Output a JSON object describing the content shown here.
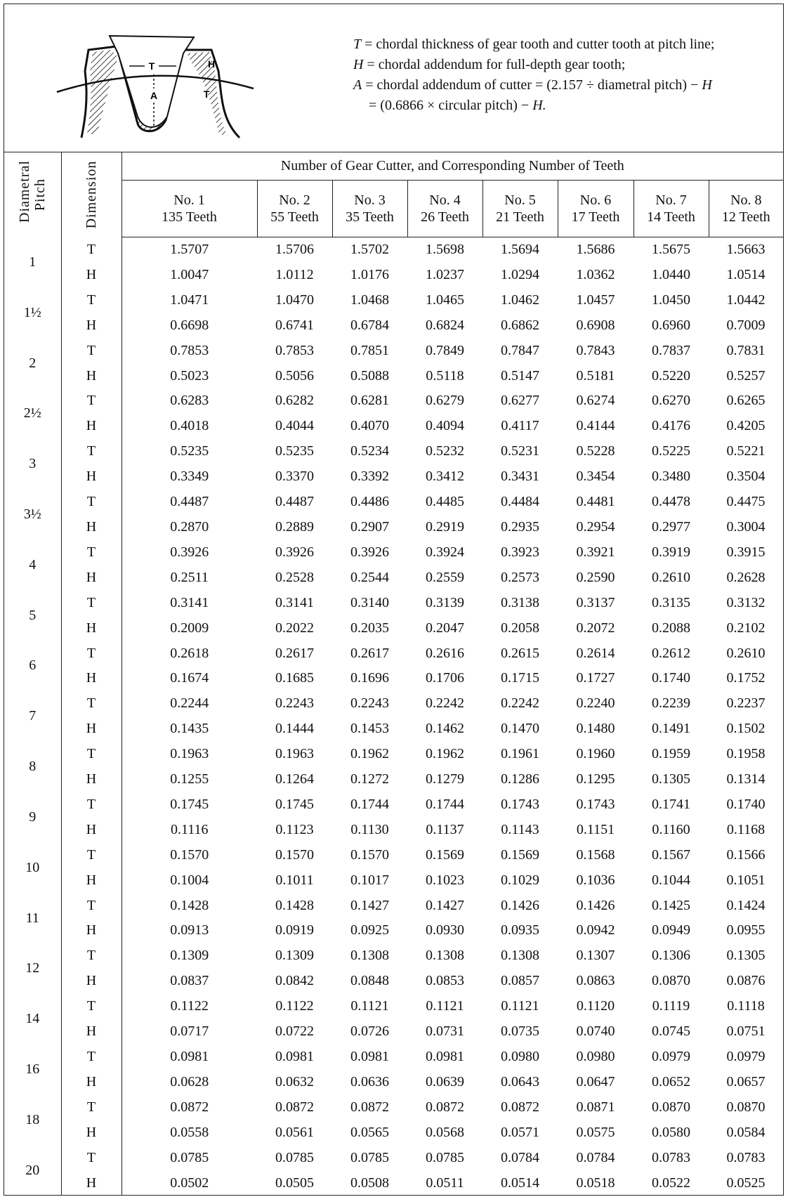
{
  "legend": {
    "line1_sym": "T",
    "line1": " = chordal thickness of gear tooth and cutter tooth at pitch line;",
    "line2_sym": "H",
    "line2": " = chordal addendum for full-depth gear tooth;",
    "line3_sym": "A",
    "line3": " = chordal addendum of cutter = (2.157 ÷ diametral pitch) − ",
    "line3_end": "H",
    "line4": "= (0.6866 × circular pitch) − ",
    "line4_end": "H."
  },
  "diagram_labels": [
    "T",
    "H",
    "A",
    "T"
  ],
  "header": {
    "pitch": "Diametral Pitch",
    "dimension": "Dimension",
    "group": "Number of Gear Cutter, and Corresponding Number of Teeth",
    "columns": [
      {
        "no": "No. 1",
        "teeth": "135 Teeth"
      },
      {
        "no": "No. 2",
        "teeth": "55 Teeth"
      },
      {
        "no": "No. 3",
        "teeth": "35 Teeth"
      },
      {
        "no": "No. 4",
        "teeth": "26 Teeth"
      },
      {
        "no": "No. 5",
        "teeth": "21 Teeth"
      },
      {
        "no": "No. 6",
        "teeth": "17 Teeth"
      },
      {
        "no": "No. 7",
        "teeth": "14 Teeth"
      },
      {
        "no": "No. 8",
        "teeth": "12 Teeth"
      }
    ]
  },
  "rows": [
    {
      "pitch": "1",
      "T": [
        "1.5707",
        "1.5706",
        "1.5702",
        "1.5698",
        "1.5694",
        "1.5686",
        "1.5675",
        "1.5663"
      ],
      "H": [
        "1.0047",
        "1.0112",
        "1.0176",
        "1.0237",
        "1.0294",
        "1.0362",
        "1.0440",
        "1.0514"
      ]
    },
    {
      "pitch": "1½",
      "T": [
        "1.0471",
        "1.0470",
        "1.0468",
        "1.0465",
        "1.0462",
        "1.0457",
        "1.0450",
        "1.0442"
      ],
      "H": [
        "0.6698",
        "0.6741",
        "0.6784",
        "0.6824",
        "0.6862",
        "0.6908",
        "0.6960",
        "0.7009"
      ]
    },
    {
      "pitch": "2",
      "T": [
        "0.7853",
        "0.7853",
        "0.7851",
        "0.7849",
        "0.7847",
        "0.7843",
        "0.7837",
        "0.7831"
      ],
      "H": [
        "0.5023",
        "0.5056",
        "0.5088",
        "0.5118",
        "0.5147",
        "0.5181",
        "0.5220",
        "0.5257"
      ]
    },
    {
      "pitch": "2½",
      "T": [
        "0.6283",
        "0.6282",
        "0.6281",
        "0.6279",
        "0.6277",
        "0.6274",
        "0.6270",
        "0.6265"
      ],
      "H": [
        "0.4018",
        "0.4044",
        "0.4070",
        "0.4094",
        "0.4117",
        "0.4144",
        "0.4176",
        "0.4205"
      ]
    },
    {
      "pitch": "3",
      "T": [
        "0.5235",
        "0.5235",
        "0.5234",
        "0.5232",
        "0.5231",
        "0.5228",
        "0.5225",
        "0.5221"
      ],
      "H": [
        "0.3349",
        "0.3370",
        "0.3392",
        "0.3412",
        "0.3431",
        "0.3454",
        "0.3480",
        "0.3504"
      ]
    },
    {
      "pitch": "3½",
      "T": [
        "0.4487",
        "0.4487",
        "0.4486",
        "0.4485",
        "0.4484",
        "0.4481",
        "0.4478",
        "0.4475"
      ],
      "H": [
        "0.2870",
        "0.2889",
        "0.2907",
        "0.2919",
        "0.2935",
        "0.2954",
        "0.2977",
        "0.3004"
      ]
    },
    {
      "pitch": "4",
      "T": [
        "0.3926",
        "0.3926",
        "0.3926",
        "0.3924",
        "0.3923",
        "0.3921",
        "0.3919",
        "0.3915"
      ],
      "H": [
        "0.2511",
        "0.2528",
        "0.2544",
        "0.2559",
        "0.2573",
        "0.2590",
        "0.2610",
        "0.2628"
      ]
    },
    {
      "pitch": "5",
      "T": [
        "0.3141",
        "0.3141",
        "0.3140",
        "0.3139",
        "0.3138",
        "0.3137",
        "0.3135",
        "0.3132"
      ],
      "H": [
        "0.2009",
        "0.2022",
        "0.2035",
        "0.2047",
        "0.2058",
        "0.2072",
        "0.2088",
        "0.2102"
      ]
    },
    {
      "pitch": "6",
      "T": [
        "0.2618",
        "0.2617",
        "0.2617",
        "0.2616",
        "0.2615",
        "0.2614",
        "0.2612",
        "0.2610"
      ],
      "H": [
        "0.1674",
        "0.1685",
        "0.1696",
        "0.1706",
        "0.1715",
        "0.1727",
        "0.1740",
        "0.1752"
      ]
    },
    {
      "pitch": "7",
      "T": [
        "0.2244",
        "0.2243",
        "0.2243",
        "0.2242",
        "0.2242",
        "0.2240",
        "0.2239",
        "0.2237"
      ],
      "H": [
        "0.1435",
        "0.1444",
        "0.1453",
        "0.1462",
        "0.1470",
        "0.1480",
        "0.1491",
        "0.1502"
      ]
    },
    {
      "pitch": "8",
      "T": [
        "0.1963",
        "0.1963",
        "0.1962",
        "0.1962",
        "0.1961",
        "0.1960",
        "0.1959",
        "0.1958"
      ],
      "H": [
        "0.1255",
        "0.1264",
        "0.1272",
        "0.1279",
        "0.1286",
        "0.1295",
        "0.1305",
        "0.1314"
      ]
    },
    {
      "pitch": "9",
      "T": [
        "0.1745",
        "0.1745",
        "0.1744",
        "0.1744",
        "0.1743",
        "0.1743",
        "0.1741",
        "0.1740"
      ],
      "H": [
        "0.1116",
        "0.1123",
        "0.1130",
        "0.1137",
        "0.1143",
        "0.1151",
        "0.1160",
        "0.1168"
      ]
    },
    {
      "pitch": "10",
      "T": [
        "0.1570",
        "0.1570",
        "0.1570",
        "0.1569",
        "0.1569",
        "0.1568",
        "0.1567",
        "0.1566"
      ],
      "H": [
        "0.1004",
        "0.1011",
        "0.1017",
        "0.1023",
        "0.1029",
        "0.1036",
        "0.1044",
        "0.1051"
      ]
    },
    {
      "pitch": "11",
      "T": [
        "0.1428",
        "0.1428",
        "0.1427",
        "0.1427",
        "0.1426",
        "0.1426",
        "0.1425",
        "0.1424"
      ],
      "H": [
        "0.0913",
        "0.0919",
        "0.0925",
        "0.0930",
        "0.0935",
        "0.0942",
        "0.0949",
        "0.0955"
      ]
    },
    {
      "pitch": "12",
      "T": [
        "0.1309",
        "0.1309",
        "0.1308",
        "0.1308",
        "0.1308",
        "0.1307",
        "0.1306",
        "0.1305"
      ],
      "H": [
        "0.0837",
        "0.0842",
        "0.0848",
        "0.0853",
        "0.0857",
        "0.0863",
        "0.0870",
        "0.0876"
      ]
    },
    {
      "pitch": "14",
      "T": [
        "0.1122",
        "0.1122",
        "0.1121",
        "0.1121",
        "0.1121",
        "0.1120",
        "0.1119",
        "0.1118"
      ],
      "H": [
        "0.0717",
        "0.0722",
        "0.0726",
        "0.0731",
        "0.0735",
        "0.0740",
        "0.0745",
        "0.0751"
      ]
    },
    {
      "pitch": "16",
      "T": [
        "0.0981",
        "0.0981",
        "0.0981",
        "0.0981",
        "0.0980",
        "0.0980",
        "0.0979",
        "0.0979"
      ],
      "H": [
        "0.0628",
        "0.0632",
        "0.0636",
        "0.0639",
        "0.0643",
        "0.0647",
        "0.0652",
        "0.0657"
      ]
    },
    {
      "pitch": "18",
      "T": [
        "0.0872",
        "0.0872",
        "0.0872",
        "0.0872",
        "0.0872",
        "0.0871",
        "0.0870",
        "0.0870"
      ],
      "H": [
        "0.0558",
        "0.0561",
        "0.0565",
        "0.0568",
        "0.0571",
        "0.0575",
        "0.0580",
        "0.0584"
      ]
    },
    {
      "pitch": "20",
      "T": [
        "0.0785",
        "0.0785",
        "0.0785",
        "0.0785",
        "0.0784",
        "0.0784",
        "0.0783",
        "0.0783"
      ],
      "H": [
        "0.0502",
        "0.0505",
        "0.0508",
        "0.0511",
        "0.0514",
        "0.0518",
        "0.0522",
        "0.0525"
      ]
    }
  ]
}
